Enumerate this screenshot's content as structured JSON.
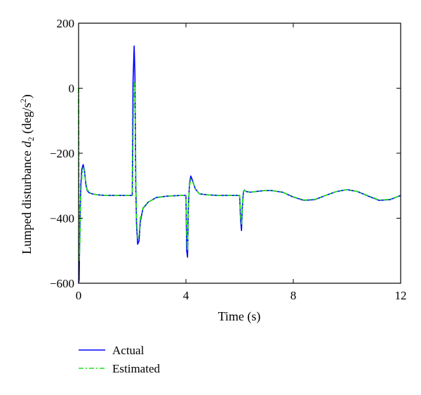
{
  "chart_data": {
    "type": "line",
    "xlabel": "Time (s)",
    "ylabel": {
      "prefix": "Lumped disturbance ",
      "variable": "d",
      "variable_subscript": "2",
      "unit_open": " (deg/s",
      "unit_superscript": "2",
      "unit_close": ")"
    },
    "xlim": [
      0,
      12
    ],
    "ylim": [
      -600,
      200
    ],
    "xticks": [
      0,
      4,
      8,
      12
    ],
    "yticks": [
      200,
      0,
      -200,
      -400,
      -600
    ],
    "xtick_labels": [
      "0",
      "4",
      "8",
      "12"
    ],
    "ytick_labels": [
      "200",
      "0",
      "−200",
      "−400",
      "−600"
    ],
    "grid": false,
    "legend_position": "bottom-left, below plot",
    "series": [
      {
        "name": "Actual",
        "color": "#0000ff",
        "dash": "solid",
        "x": [
          0,
          0.02,
          0.05,
          0.08,
          0.12,
          0.17,
          0.22,
          0.27,
          0.32,
          0.4,
          0.5,
          0.7,
          1.0,
          1.5,
          2.0,
          2.03,
          2.07,
          2.1,
          2.13,
          2.16,
          2.2,
          2.25,
          2.3,
          2.4,
          2.6,
          2.9,
          3.3,
          3.8,
          4.0,
          4.03,
          4.06,
          4.09,
          4.13,
          4.18,
          4.25,
          4.35,
          4.5,
          4.8,
          5.2,
          5.8,
          6.0,
          6.04,
          6.07,
          6.1,
          6.14,
          6.18,
          6.25,
          6.4,
          6.6,
          6.9,
          7.2,
          7.6,
          8.0,
          8.4,
          8.8,
          9.2,
          9.6,
          10.0,
          10.4,
          10.8,
          11.2,
          11.6,
          12.0
        ],
        "y": [
          -600,
          -590,
          -420,
          -300,
          -250,
          -235,
          -255,
          -295,
          -315,
          -322,
          -325,
          -328,
          -330,
          -330,
          -330,
          20,
          130,
          40,
          -300,
          -420,
          -480,
          -470,
          -410,
          -370,
          -350,
          -336,
          -332,
          -330,
          -330,
          -500,
          -520,
          -370,
          -295,
          -270,
          -285,
          -310,
          -325,
          -328,
          -330,
          -330,
          -330,
          -410,
          -438,
          -370,
          -318,
          -313,
          -318,
          -320,
          -318,
          -315,
          -315,
          -320,
          -335,
          -345,
          -343,
          -330,
          -318,
          -312,
          -318,
          -332,
          -345,
          -343,
          -330
        ]
      },
      {
        "name": "Estimated",
        "color": "#22dd22",
        "dash": "dashdot",
        "x": [
          0,
          0.02,
          0.05,
          0.08,
          0.12,
          0.17,
          0.22,
          0.27,
          0.32,
          0.4,
          0.5,
          0.7,
          1.0,
          1.5,
          2.0,
          2.03,
          2.07,
          2.1,
          2.13,
          2.16,
          2.2,
          2.25,
          2.3,
          2.4,
          2.6,
          2.9,
          3.3,
          3.8,
          4.0,
          4.03,
          4.06,
          4.09,
          4.13,
          4.18,
          4.25,
          4.35,
          4.5,
          4.8,
          5.2,
          5.8,
          6.0,
          6.04,
          6.07,
          6.1,
          6.14,
          6.18,
          6.25,
          6.4,
          6.6,
          6.9,
          7.2,
          7.6,
          8.0,
          8.4,
          8.8,
          9.2,
          9.6,
          10.0,
          10.4,
          10.8,
          11.2,
          11.6,
          12.0
        ],
        "y": [
          0,
          -530,
          -470,
          -330,
          -270,
          -245,
          -255,
          -290,
          -312,
          -320,
          -325,
          -328,
          -330,
          -330,
          -330,
          -150,
          20,
          10,
          -280,
          -400,
          -460,
          -455,
          -400,
          -368,
          -350,
          -337,
          -332,
          -330,
          -330,
          -440,
          -500,
          -360,
          -300,
          -280,
          -288,
          -310,
          -325,
          -328,
          -330,
          -330,
          -330,
          -390,
          -420,
          -360,
          -320,
          -314,
          -318,
          -320,
          -318,
          -315,
          -315,
          -320,
          -334,
          -344,
          -342,
          -330,
          -318,
          -312,
          -318,
          -331,
          -344,
          -342,
          -330
        ]
      }
    ]
  }
}
